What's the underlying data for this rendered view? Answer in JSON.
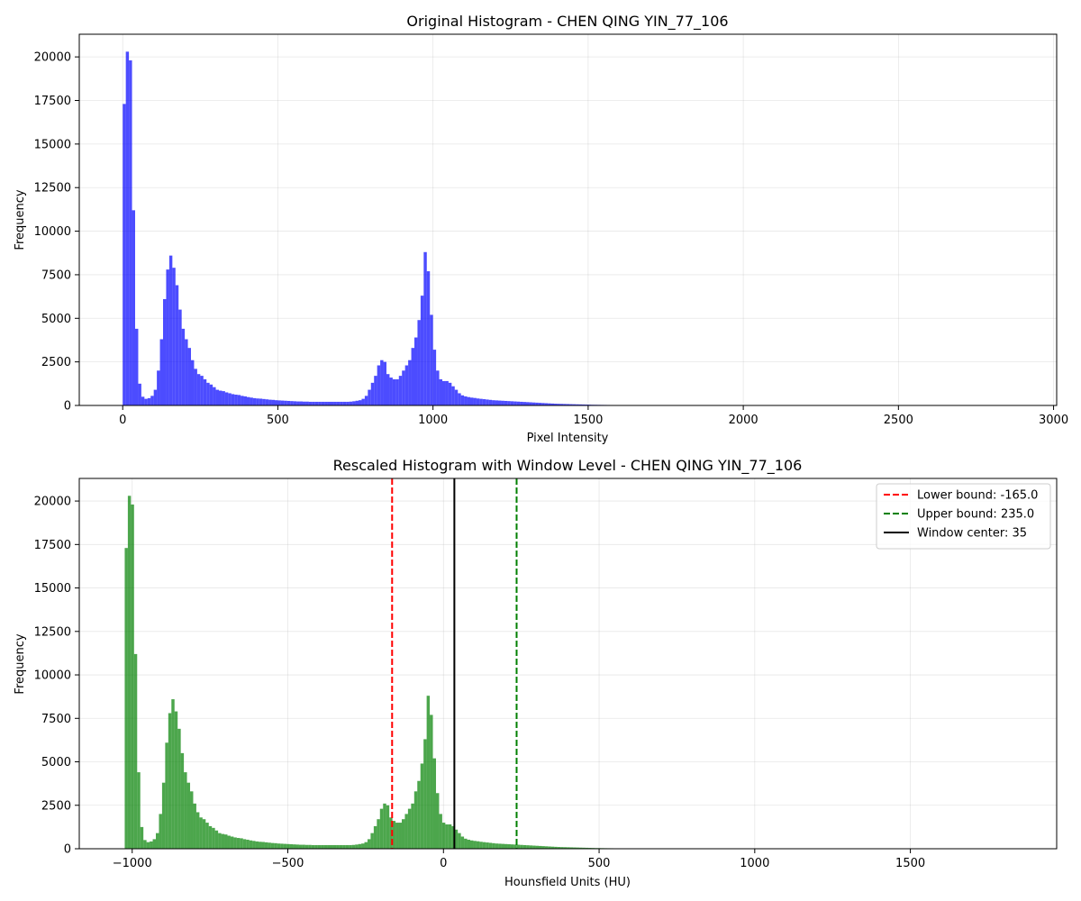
{
  "chart_data": [
    {
      "type": "bar",
      "title": "Original Histogram - CHEN QING YIN_77_106",
      "xlabel": "Pixel Intensity",
      "ylabel": "Frequency",
      "xlim": [
        -140,
        3010
      ],
      "ylim": [
        0,
        21300
      ],
      "xticks": [
        0,
        500,
        1000,
        1500,
        2000,
        2500,
        3000
      ],
      "xtick_labels": [
        "0",
        "500",
        "1000",
        "1500",
        "2000",
        "2500",
        "3000"
      ],
      "yticks": [
        0,
        2500,
        5000,
        7500,
        10000,
        12500,
        15000,
        17500,
        20000
      ],
      "ytick_labels": [
        "0",
        "2500",
        "5000",
        "7500",
        "10000",
        "12500",
        "15000",
        "17500",
        "20000"
      ],
      "grid": true,
      "color": "#0000ff",
      "bin_width": 10,
      "x_start": 0,
      "values": [
        17300,
        20300,
        19800,
        11200,
        4400,
        1250,
        500,
        380,
        420,
        550,
        900,
        2000,
        3800,
        6100,
        7800,
        8600,
        7900,
        6900,
        5500,
        4400,
        3800,
        3300,
        2600,
        2100,
        1800,
        1700,
        1500,
        1300,
        1200,
        1050,
        900,
        850,
        820,
        750,
        700,
        650,
        620,
        600,
        550,
        520,
        480,
        450,
        420,
        400,
        390,
        370,
        350,
        330,
        320,
        300,
        290,
        280,
        270,
        260,
        250,
        240,
        230,
        230,
        220,
        220,
        210,
        210,
        210,
        210,
        210,
        210,
        210,
        210,
        210,
        210,
        210,
        210,
        210,
        220,
        240,
        270,
        300,
        380,
        550,
        900,
        1300,
        1700,
        2300,
        2600,
        2500,
        1800,
        1600,
        1500,
        1500,
        1700,
        2000,
        2300,
        2600,
        3300,
        3900,
        4900,
        6300,
        8800,
        7700,
        5200,
        3200,
        2000,
        1500,
        1400,
        1400,
        1300,
        1100,
        900,
        700,
        580,
        520,
        480,
        450,
        430,
        400,
        380,
        360,
        340,
        320,
        300,
        290,
        280,
        270,
        260,
        250,
        240,
        230,
        220,
        210,
        200,
        190,
        180,
        170,
        160,
        150,
        140,
        130,
        120,
        110,
        100,
        95,
        90,
        85,
        80,
        75,
        70,
        65,
        60,
        55,
        50,
        45,
        40,
        38,
        35,
        32,
        30,
        28,
        26,
        24,
        22,
        20,
        18,
        16,
        14,
        12,
        10,
        8,
        6
      ]
    },
    {
      "type": "bar",
      "title": "Rescaled Histogram with Window Level - CHEN QING YIN_77_106",
      "xlabel": "Hounsfield Units (HU)",
      "ylabel": "Frequency",
      "xlim": [
        -1170,
        1970
      ],
      "ylim": [
        0,
        21300
      ],
      "xticks": [
        -1000,
        -500,
        0,
        500,
        1000,
        1500
      ],
      "xtick_labels": [
        "−1000",
        "−500",
        "0",
        "500",
        "1000",
        "1500"
      ],
      "yticks": [
        0,
        2500,
        5000,
        7500,
        10000,
        12500,
        15000,
        17500,
        20000
      ],
      "ytick_labels": [
        "0",
        "2500",
        "5000",
        "7500",
        "10000",
        "12500",
        "15000",
        "17500",
        "20000"
      ],
      "grid": true,
      "color": "#008000",
      "bin_width": 10,
      "x_start": -1024,
      "values": [
        17300,
        20300,
        19800,
        11200,
        4400,
        1250,
        500,
        380,
        420,
        550,
        900,
        2000,
        3800,
        6100,
        7800,
        8600,
        7900,
        6900,
        5500,
        4400,
        3800,
        3300,
        2600,
        2100,
        1800,
        1700,
        1500,
        1300,
        1200,
        1050,
        900,
        850,
        820,
        750,
        700,
        650,
        620,
        600,
        550,
        520,
        480,
        450,
        420,
        400,
        390,
        370,
        350,
        330,
        320,
        300,
        290,
        280,
        270,
        260,
        250,
        240,
        230,
        230,
        220,
        220,
        210,
        210,
        210,
        210,
        210,
        210,
        210,
        210,
        210,
        210,
        210,
        210,
        210,
        220,
        240,
        270,
        300,
        380,
        550,
        900,
        1300,
        1700,
        2300,
        2600,
        2500,
        1800,
        1600,
        1500,
        1500,
        1700,
        2000,
        2300,
        2600,
        3300,
        3900,
        4900,
        6300,
        8800,
        7700,
        5200,
        3200,
        2000,
        1500,
        1400,
        1400,
        1300,
        1100,
        900,
        700,
        580,
        520,
        480,
        450,
        430,
        400,
        380,
        360,
        340,
        320,
        300,
        290,
        280,
        270,
        260,
        250,
        240,
        230,
        220,
        210,
        200,
        190,
        180,
        170,
        160,
        150,
        140,
        130,
        120,
        110,
        100,
        95,
        90,
        85,
        80,
        75,
        70,
        65,
        60,
        55,
        50,
        45,
        40,
        38,
        35,
        32,
        30,
        28,
        26,
        24,
        22,
        20,
        18,
        16,
        14,
        12,
        10,
        8,
        6
      ],
      "vlines": [
        {
          "x": -165.0,
          "color": "#ff0000",
          "style": "dashed",
          "label": "Lower bound: -165.0"
        },
        {
          "x": 235.0,
          "color": "#008000",
          "style": "dashed",
          "label": "Upper bound: 235.0"
        },
        {
          "x": 35,
          "color": "#000000",
          "style": "solid",
          "label": "Window center: 35"
        }
      ],
      "legend_position": "top-right"
    }
  ]
}
